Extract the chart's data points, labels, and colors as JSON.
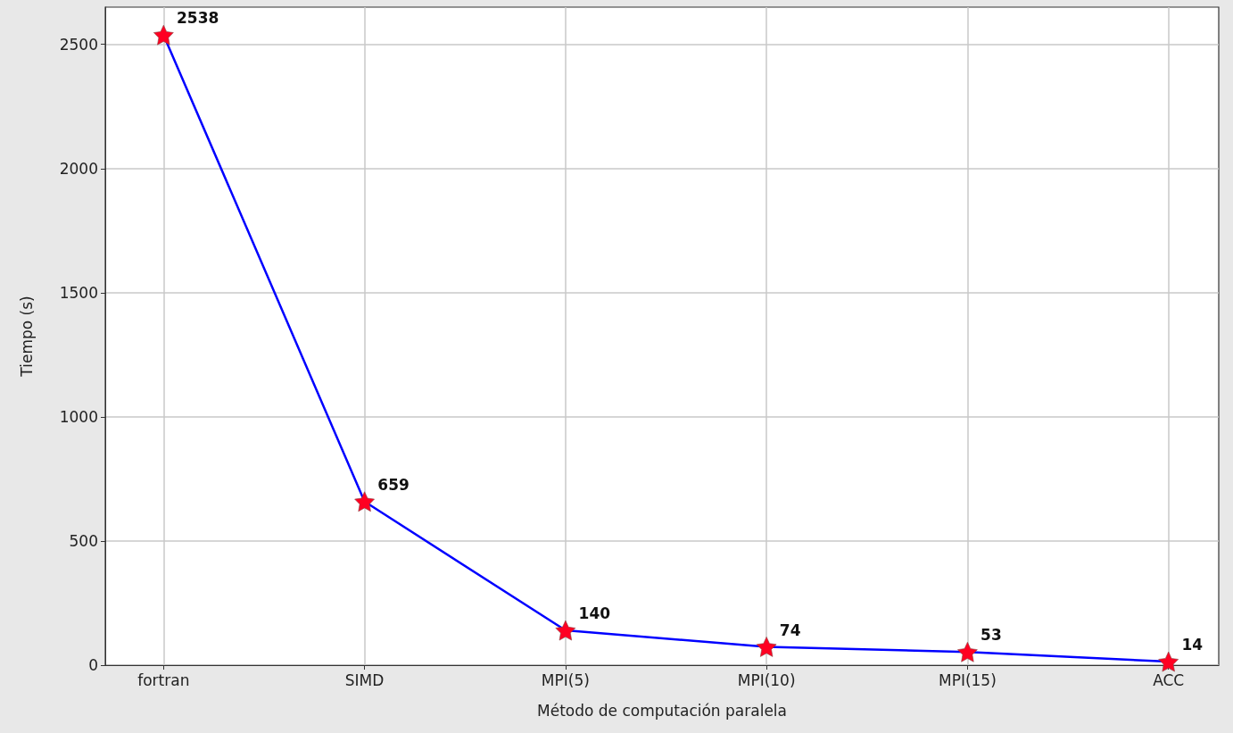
{
  "chart_data": {
    "type": "line",
    "xlabel": "Método de computación paralela",
    "ylabel": "Tiempo (s)",
    "categories": [
      "fortran",
      "SIMD",
      "MPI(5)",
      "MPI(10)",
      "MPI(15)",
      "ACC"
    ],
    "series": [
      {
        "color": "#0000ff",
        "colors": [
          "#ff0022",
          "#ff0022",
          "#ff0022",
          "#ff0022",
          "#ff0022",
          "#ff0022"
        ],
        "values": [
          2538,
          659,
          140,
          74,
          53,
          14
        ]
      }
    ],
    "ylim": [
      0,
      2650
    ],
    "yticks": [
      0,
      500,
      1000,
      1500,
      2000,
      2500
    ],
    "grid": true,
    "marker": "star",
    "line_style": "solid",
    "data_labels": true
  }
}
